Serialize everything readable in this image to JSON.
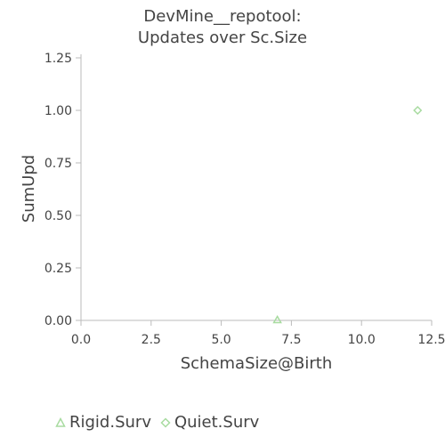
{
  "chart_data": {
    "type": "scatter",
    "title_lines": [
      "DevMine__repotool:",
      "Updates over Sc.Size"
    ],
    "xlabel": "SchemaSize@Birth",
    "ylabel": "SumUpd",
    "xlim": [
      0,
      12.5
    ],
    "ylim": [
      0,
      1.25
    ],
    "x_ticks": [
      "0.0",
      "2.5",
      "5.0",
      "7.5",
      "10.0",
      "12.5"
    ],
    "x_tick_values": [
      0,
      2.5,
      5,
      7.5,
      10,
      12.5
    ],
    "y_ticks": [
      "0.00",
      "0.25",
      "0.50",
      "0.75",
      "1.00",
      "1.25"
    ],
    "y_tick_values": [
      0,
      0.25,
      0.5,
      0.75,
      1,
      1.25
    ],
    "grid": false,
    "legend_position": "bottom",
    "series": [
      {
        "name": "Rigid.Surv",
        "marker": "triangle",
        "color": "#a8dba0",
        "points": [
          [
            7,
            0
          ]
        ]
      },
      {
        "name": "Quiet.Surv",
        "marker": "diamond",
        "color": "#a8dba0",
        "points": [
          [
            12,
            1
          ]
        ]
      }
    ]
  }
}
